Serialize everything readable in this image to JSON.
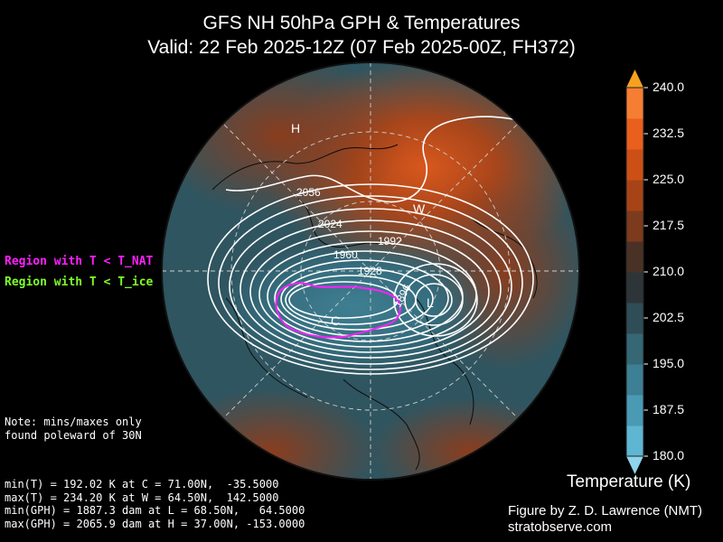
{
  "title_line1": "GFS NH 50hPa GPH & Temperatures",
  "title_line2": "Valid: 22 Feb 2025-12Z  (07 Feb 2025-00Z, FH372)",
  "legend": {
    "nat_label": "Region with T < T_NAT",
    "nat_color": "#ff1fff",
    "ice_label": "Region with T < T_ice",
    "ice_color": "#7dff2a"
  },
  "note": "Note: mins/maxes only\nfound poleward of 30N",
  "stats": [
    "min(T) = 192.02 K at C = 71.00N,  -35.5000",
    "max(T) = 234.20 K at W = 64.50N,  142.5000",
    "min(GPH) = 1887.3 dam at L = 68.50N,   64.5000",
    "max(GPH) = 2065.9 dam at H = 37.00N, -153.0000"
  ],
  "map": {
    "markers": {
      "high": "H",
      "low": "L",
      "warm": "W",
      "cold": "C"
    },
    "contour_labels": [
      "2056",
      "2024",
      "1992",
      "1960",
      "1928",
      "1896"
    ]
  },
  "colorbar": {
    "title": "Temperature (K)",
    "ticks": [
      "240.0",
      "232.5",
      "225.0",
      "217.5",
      "210.0",
      "202.5",
      "195.0",
      "187.5",
      "180.0"
    ],
    "min": 180.0,
    "max": 240.0,
    "colors_low_to_high": [
      "#5fb6d2",
      "#4a9ab4",
      "#3d7f95",
      "#356775",
      "#2f4d56",
      "#2e3538",
      "#4a3126",
      "#7c3b1d",
      "#a64417",
      "#cc5016",
      "#e95f1d",
      "#f57e32"
    ],
    "extend_low_color": "#8fd4ea",
    "extend_high_color": "#f7a11e"
  },
  "credit_line1": "Figure by Z. D. Lawrence (NMT)",
  "credit_line2": "stratobserve.com"
}
